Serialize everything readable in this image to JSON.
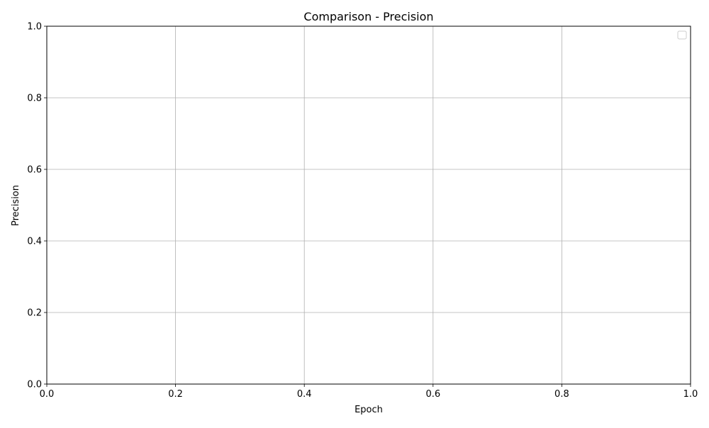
{
  "chart_data": {
    "type": "line",
    "title": "Comparison - Precision",
    "xlabel": "Epoch",
    "ylabel": "Precision",
    "xlim": [
      0.0,
      1.0
    ],
    "ylim": [
      0.0,
      1.0
    ],
    "x_ticks": [
      "0.0",
      "0.2",
      "0.4",
      "0.6",
      "0.8",
      "1.0"
    ],
    "y_ticks": [
      "0.0",
      "0.2",
      "0.4",
      "0.6",
      "0.8",
      "1.0"
    ],
    "series": [],
    "grid": true,
    "legend_position": "top-right",
    "colors": {
      "grid": "#b0b0b0",
      "axes": "#000000",
      "legend_border": "#cccccc"
    }
  }
}
